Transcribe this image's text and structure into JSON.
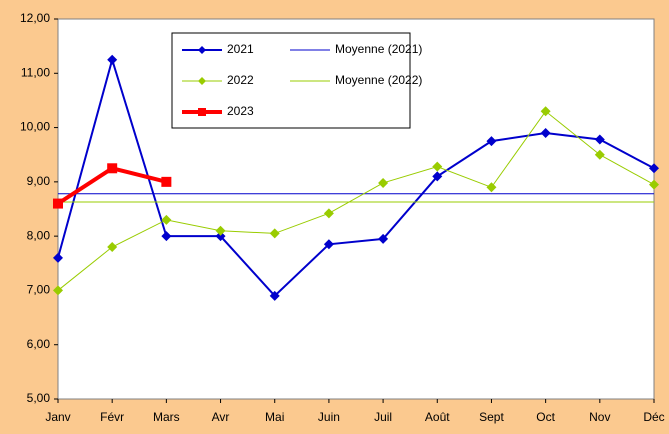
{
  "chart_data": {
    "type": "line",
    "categories": [
      "Janv",
      "Févr",
      "Mars",
      "Avr",
      "Mai",
      "Juin",
      "Juil",
      "Août",
      "Sept",
      "Oct",
      "Nov",
      "Déc"
    ],
    "series": [
      {
        "name": "2021",
        "color": "#0000cc",
        "width": 2,
        "marker": "diamond",
        "values": [
          7.6,
          11.25,
          8.0,
          8.0,
          6.9,
          7.85,
          7.95,
          9.1,
          9.75,
          9.9,
          9.78,
          9.25
        ]
      },
      {
        "name": "Moyenne (2021)",
        "color": "#0000cc",
        "width": 1,
        "marker": "none",
        "values": [
          8.78,
          8.78,
          8.78,
          8.78,
          8.78,
          8.78,
          8.78,
          8.78,
          8.78,
          8.78,
          8.78,
          8.78
        ]
      },
      {
        "name": "2022",
        "color": "#99cc00",
        "width": 1,
        "marker": "diamond",
        "values": [
          7.0,
          7.8,
          8.3,
          8.1,
          8.05,
          8.42,
          8.98,
          9.28,
          8.9,
          10.3,
          9.5,
          8.95
        ]
      },
      {
        "name": "Moyenne (2022)",
        "color": "#99cc00",
        "width": 1,
        "marker": "none",
        "values": [
          8.63,
          8.63,
          8.63,
          8.63,
          8.63,
          8.63,
          8.63,
          8.63,
          8.63,
          8.63,
          8.63,
          8.63
        ]
      },
      {
        "name": "2023",
        "color": "#ff0000",
        "width": 4,
        "marker": "square",
        "values": [
          8.6,
          9.25,
          9.0,
          null,
          null,
          null,
          null,
          null,
          null,
          null,
          null,
          null
        ]
      }
    ],
    "ylim": [
      5,
      12
    ],
    "yticks": [
      {
        "value": 5,
        "label": "5,00"
      },
      {
        "value": 6,
        "label": "6,00"
      },
      {
        "value": 7,
        "label": "7,00"
      },
      {
        "value": 8,
        "label": "8,00"
      },
      {
        "value": 9,
        "label": "9,00"
      },
      {
        "value": 10,
        "label": "10,00"
      },
      {
        "value": 11,
        "label": "11,00"
      },
      {
        "value": 12,
        "label": "12,00"
      }
    ]
  }
}
